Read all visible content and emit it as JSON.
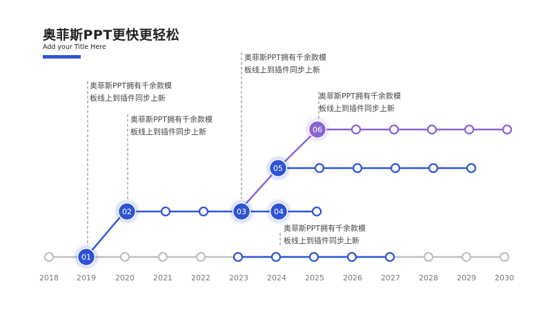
{
  "header": {
    "title": "奥菲斯PPT更快更轻松",
    "subtitle": "Add your Title Here"
  },
  "colors": {
    "blue": "#2f55d4",
    "purple": "#8a63d2",
    "gray": "#bfbfbf",
    "dash": "#999999"
  },
  "years": [
    "2018",
    "2019",
    "2020",
    "2021",
    "2022",
    "2023",
    "2024",
    "2025",
    "2026",
    "2027",
    "2028",
    "2029",
    "2030"
  ],
  "milestones": [
    {
      "label": "01",
      "year": "2019",
      "level": 0,
      "color": "blue"
    },
    {
      "label": "02",
      "year": "2020",
      "level": 1,
      "color": "blue"
    },
    {
      "label": "03",
      "year": "2023",
      "level": 1,
      "color": "blue"
    },
    {
      "label": "04",
      "year": "2024",
      "level": 1,
      "color": "blue"
    },
    {
      "label": "05",
      "year": "2024.5",
      "level": 2,
      "color": "blue"
    },
    {
      "label": "06",
      "year": "2025",
      "level": 3,
      "color": "purple"
    }
  ],
  "notes": [
    {
      "text": "奥菲斯PPT拥有千余款模\n板线上到插件同步上新"
    },
    {
      "text": "奥菲斯PPT拥有千余款模\n板线上到插件同步上新"
    },
    {
      "text": "奥菲斯PPT拥有千余款模\n板线上到插件同步上新"
    },
    {
      "text": "奥菲斯PPT拥有千余款模\n板线上到插件同步上新"
    },
    {
      "text": "奥菲斯PPT拥有千余款模\n板线上到插件同步上新"
    }
  ]
}
